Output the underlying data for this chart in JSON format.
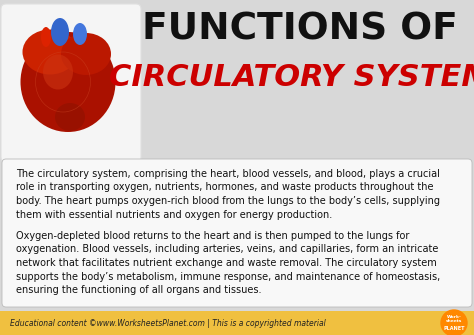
{
  "bg_color": "#d8d8d8",
  "header_bg": "#d8d8d8",
  "white_box_color": "#f8f8f8",
  "footer_bg_color": "#f0c040",
  "title_line1": "FUNCTIONS OF",
  "title_line2": "CIRCULATORY SYSTEM",
  "title_line1_color": "#111111",
  "title_line2_color": "#cc0000",
  "paragraph1_lines": [
    "The circulatory system, comprising the heart, blood vessels, and blood, plays a crucial",
    "role in transporting oxygen, nutrients, hormones, and waste products throughout the",
    "body. The heart pumps oxygen-rich blood from the lungs to the body’s cells, supplying",
    "them with essential nutrients and oxygen for energy production."
  ],
  "paragraph2_lines": [
    "Oxygen-depleted blood returns to the heart and is then pumped to the lungs for",
    "oxygenation. Blood vessels, including arteries, veins, and capillaries, form an intricate",
    "network that facilitates nutrient exchange and waste removal. The circulatory system",
    "supports the body’s metabolism, immune response, and maintenance of homeostasis,",
    "ensuring the functioning of all organs and tissues."
  ],
  "body_text_color": "#111111",
  "footer_text": "Educational content ©www.WorksheetsPlanet.com | This is a copyrighted material",
  "footer_text_color": "#222222",
  "heart_box_color": "#f0f0f0",
  "heart_box_border": "#dddddd"
}
